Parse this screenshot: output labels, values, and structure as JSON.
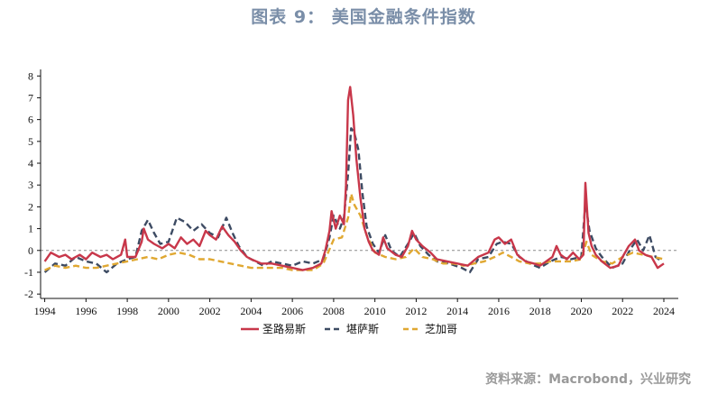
{
  "title": "图表 9：  美国金融条件指数",
  "source": "资料来源：Macrobond，兴业研究",
  "chart_data": {
    "type": "line",
    "xlim": [
      1993.8,
      2024.7
    ],
    "ylim": [
      -2.2,
      8.3
    ],
    "x_ticks": [
      1994,
      1996,
      1998,
      2000,
      2002,
      2004,
      2006,
      2008,
      2010,
      2012,
      2014,
      2016,
      2018,
      2020,
      2022,
      2024
    ],
    "y_ticks": [
      -2,
      -1,
      0,
      1,
      2,
      3,
      4,
      5,
      6,
      7,
      8
    ],
    "zero_line": true,
    "legend_position": "bottom-center",
    "series": [
      {
        "name": "圣路易斯",
        "color": "#c8374a",
        "style": "solid",
        "points": [
          [
            1994.0,
            -0.5
          ],
          [
            1994.3,
            -0.1
          ],
          [
            1994.7,
            -0.3
          ],
          [
            1995.0,
            -0.2
          ],
          [
            1995.3,
            -0.4
          ],
          [
            1995.7,
            -0.2
          ],
          [
            1996.0,
            -0.4
          ],
          [
            1996.3,
            -0.1
          ],
          [
            1996.7,
            -0.3
          ],
          [
            1997.0,
            -0.2
          ],
          [
            1997.3,
            -0.4
          ],
          [
            1997.7,
            -0.2
          ],
          [
            1997.9,
            0.5
          ],
          [
            1998.0,
            -0.3
          ],
          [
            1998.4,
            -0.3
          ],
          [
            1998.7,
            0.4
          ],
          [
            1998.8,
            1.0
          ],
          [
            1999.0,
            0.5
          ],
          [
            1999.3,
            0.3
          ],
          [
            1999.7,
            0.1
          ],
          [
            2000.0,
            0.3
          ],
          [
            2000.3,
            0.1
          ],
          [
            2000.6,
            0.6
          ],
          [
            2000.9,
            0.3
          ],
          [
            2001.2,
            0.5
          ],
          [
            2001.5,
            0.2
          ],
          [
            2001.8,
            0.9
          ],
          [
            2002.0,
            0.7
          ],
          [
            2002.3,
            0.5
          ],
          [
            2002.6,
            1.1
          ],
          [
            2002.9,
            0.7
          ],
          [
            2003.2,
            0.4
          ],
          [
            2003.5,
            0.0
          ],
          [
            2003.8,
            -0.3
          ],
          [
            2004.0,
            -0.4
          ],
          [
            2004.5,
            -0.6
          ],
          [
            2005.0,
            -0.6
          ],
          [
            2005.5,
            -0.7
          ],
          [
            2006.0,
            -0.8
          ],
          [
            2006.5,
            -0.9
          ],
          [
            2007.0,
            -0.8
          ],
          [
            2007.4,
            -0.6
          ],
          [
            2007.6,
            0.0
          ],
          [
            2007.8,
            0.9
          ],
          [
            2007.9,
            1.8
          ],
          [
            2008.1,
            1.0
          ],
          [
            2008.3,
            1.6
          ],
          [
            2008.5,
            1.2
          ],
          [
            2008.6,
            3.0
          ],
          [
            2008.7,
            6.9
          ],
          [
            2008.8,
            7.5
          ],
          [
            2008.95,
            6.2
          ],
          [
            2009.1,
            4.2
          ],
          [
            2009.3,
            2.4
          ],
          [
            2009.5,
            1.0
          ],
          [
            2009.7,
            0.4
          ],
          [
            2009.9,
            0.0
          ],
          [
            2010.2,
            -0.2
          ],
          [
            2010.4,
            0.6
          ],
          [
            2010.6,
            0.1
          ],
          [
            2011.0,
            -0.2
          ],
          [
            2011.3,
            -0.3
          ],
          [
            2011.6,
            0.2
          ],
          [
            2011.8,
            0.9
          ],
          [
            2012.0,
            0.5
          ],
          [
            2012.3,
            0.2
          ],
          [
            2012.7,
            -0.1
          ],
          [
            2013.0,
            -0.4
          ],
          [
            2013.5,
            -0.5
          ],
          [
            2014.0,
            -0.6
          ],
          [
            2014.5,
            -0.7
          ],
          [
            2015.0,
            -0.3
          ],
          [
            2015.5,
            -0.1
          ],
          [
            2015.8,
            0.5
          ],
          [
            2016.0,
            0.6
          ],
          [
            2016.3,
            0.3
          ],
          [
            2016.6,
            0.5
          ],
          [
            2016.9,
            -0.2
          ],
          [
            2017.3,
            -0.5
          ],
          [
            2017.7,
            -0.6
          ],
          [
            2018.0,
            -0.7
          ],
          [
            2018.3,
            -0.5
          ],
          [
            2018.6,
            -0.3
          ],
          [
            2018.8,
            0.2
          ],
          [
            2019.0,
            -0.2
          ],
          [
            2019.3,
            -0.4
          ],
          [
            2019.6,
            -0.1
          ],
          [
            2019.9,
            -0.4
          ],
          [
            2020.1,
            -0.2
          ],
          [
            2020.2,
            3.1
          ],
          [
            2020.35,
            0.8
          ],
          [
            2020.5,
            0.2
          ],
          [
            2020.7,
            -0.2
          ],
          [
            2021.0,
            -0.5
          ],
          [
            2021.4,
            -0.8
          ],
          [
            2021.8,
            -0.7
          ],
          [
            2022.0,
            -0.3
          ],
          [
            2022.3,
            0.2
          ],
          [
            2022.6,
            0.5
          ],
          [
            2022.8,
            0.0
          ],
          [
            2023.1,
            -0.2
          ],
          [
            2023.4,
            -0.3
          ],
          [
            2023.7,
            -0.8
          ],
          [
            2024.0,
            -0.6
          ]
        ]
      },
      {
        "name": "堪萨斯",
        "color": "#3d4b63",
        "style": "dash",
        "points": [
          [
            1994.0,
            -1.0
          ],
          [
            1994.5,
            -0.6
          ],
          [
            1995.0,
            -0.7
          ],
          [
            1995.5,
            -0.3
          ],
          [
            1996.0,
            -0.5
          ],
          [
            1996.5,
            -0.6
          ],
          [
            1997.0,
            -1.0
          ],
          [
            1997.5,
            -0.6
          ],
          [
            1998.0,
            -0.4
          ],
          [
            1998.4,
            -0.3
          ],
          [
            1998.7,
            0.9
          ],
          [
            1999.0,
            1.4
          ],
          [
            1999.3,
            0.8
          ],
          [
            1999.6,
            0.3
          ],
          [
            2000.0,
            0.4
          ],
          [
            2000.4,
            1.5
          ],
          [
            2000.8,
            1.3
          ],
          [
            2001.2,
            0.9
          ],
          [
            2001.6,
            1.2
          ],
          [
            2002.0,
            0.8
          ],
          [
            2002.4,
            0.6
          ],
          [
            2002.8,
            1.5
          ],
          [
            2003.1,
            0.8
          ],
          [
            2003.4,
            0.2
          ],
          [
            2003.8,
            -0.3
          ],
          [
            2004.2,
            -0.5
          ],
          [
            2004.6,
            -0.7
          ],
          [
            2005.0,
            -0.5
          ],
          [
            2005.5,
            -0.6
          ],
          [
            2006.0,
            -0.7
          ],
          [
            2006.5,
            -0.5
          ],
          [
            2007.0,
            -0.6
          ],
          [
            2007.5,
            -0.4
          ],
          [
            2007.8,
            0.6
          ],
          [
            2008.0,
            1.6
          ],
          [
            2008.3,
            1.0
          ],
          [
            2008.5,
            1.5
          ],
          [
            2008.7,
            3.5
          ],
          [
            2008.85,
            5.6
          ],
          [
            2009.0,
            5.4
          ],
          [
            2009.2,
            4.6
          ],
          [
            2009.4,
            2.6
          ],
          [
            2009.6,
            1.1
          ],
          [
            2009.9,
            0.3
          ],
          [
            2010.2,
            -0.1
          ],
          [
            2010.5,
            0.7
          ],
          [
            2010.8,
            0.0
          ],
          [
            2011.2,
            -0.3
          ],
          [
            2011.6,
            0.3
          ],
          [
            2011.9,
            0.8
          ],
          [
            2012.2,
            0.2
          ],
          [
            2012.6,
            -0.2
          ],
          [
            2013.0,
            -0.5
          ],
          [
            2013.6,
            -0.6
          ],
          [
            2014.2,
            -0.8
          ],
          [
            2014.6,
            -1.0
          ],
          [
            2015.0,
            -0.4
          ],
          [
            2015.5,
            -0.3
          ],
          [
            2015.9,
            0.3
          ],
          [
            2016.2,
            0.4
          ],
          [
            2016.6,
            0.3
          ],
          [
            2017.0,
            -0.3
          ],
          [
            2017.5,
            -0.6
          ],
          [
            2018.0,
            -0.8
          ],
          [
            2018.5,
            -0.5
          ],
          [
            2019.0,
            -0.3
          ],
          [
            2019.5,
            -0.4
          ],
          [
            2020.0,
            -0.3
          ],
          [
            2020.2,
            2.2
          ],
          [
            2020.4,
            0.9
          ],
          [
            2020.7,
            0.1
          ],
          [
            2021.0,
            -0.3
          ],
          [
            2021.5,
            -0.8
          ],
          [
            2022.0,
            -0.6
          ],
          [
            2022.4,
            0.1
          ],
          [
            2022.7,
            0.5
          ],
          [
            2023.0,
            0.0
          ],
          [
            2023.3,
            0.7
          ],
          [
            2023.6,
            -0.3
          ],
          [
            2023.9,
            -0.5
          ]
        ]
      },
      {
        "name": "芝加哥",
        "color": "#e0a832",
        "style": "dash",
        "points": [
          [
            1994.0,
            -0.9
          ],
          [
            1994.5,
            -0.7
          ],
          [
            1995.0,
            -0.8
          ],
          [
            1995.5,
            -0.7
          ],
          [
            1996.0,
            -0.8
          ],
          [
            1996.5,
            -0.8
          ],
          [
            1997.0,
            -0.7
          ],
          [
            1997.5,
            -0.6
          ],
          [
            1998.0,
            -0.5
          ],
          [
            1998.5,
            -0.4
          ],
          [
            1999.0,
            -0.3
          ],
          [
            1999.5,
            -0.4
          ],
          [
            2000.0,
            -0.2
          ],
          [
            2000.5,
            -0.1
          ],
          [
            2001.0,
            -0.2
          ],
          [
            2001.5,
            -0.4
          ],
          [
            2002.0,
            -0.4
          ],
          [
            2002.5,
            -0.5
          ],
          [
            2003.0,
            -0.6
          ],
          [
            2003.5,
            -0.7
          ],
          [
            2004.0,
            -0.8
          ],
          [
            2004.5,
            -0.8
          ],
          [
            2005.0,
            -0.8
          ],
          [
            2005.5,
            -0.8
          ],
          [
            2006.0,
            -0.9
          ],
          [
            2006.5,
            -0.9
          ],
          [
            2007.0,
            -0.9
          ],
          [
            2007.5,
            -0.6
          ],
          [
            2008.0,
            0.5
          ],
          [
            2008.4,
            0.6
          ],
          [
            2008.7,
            1.5
          ],
          [
            2008.85,
            2.6
          ],
          [
            2009.0,
            2.1
          ],
          [
            2009.3,
            1.6
          ],
          [
            2009.6,
            0.7
          ],
          [
            2010.0,
            -0.1
          ],
          [
            2010.5,
            -0.3
          ],
          [
            2011.0,
            -0.4
          ],
          [
            2011.5,
            -0.3
          ],
          [
            2011.9,
            0.1
          ],
          [
            2012.3,
            -0.3
          ],
          [
            2012.8,
            -0.4
          ],
          [
            2013.3,
            -0.6
          ],
          [
            2013.8,
            -0.6
          ],
          [
            2014.3,
            -0.7
          ],
          [
            2014.8,
            -0.6
          ],
          [
            2015.3,
            -0.5
          ],
          [
            2015.8,
            -0.3
          ],
          [
            2016.2,
            -0.1
          ],
          [
            2016.6,
            -0.3
          ],
          [
            2017.0,
            -0.5
          ],
          [
            2017.5,
            -0.6
          ],
          [
            2018.0,
            -0.6
          ],
          [
            2018.5,
            -0.5
          ],
          [
            2019.0,
            -0.5
          ],
          [
            2019.5,
            -0.5
          ],
          [
            2020.0,
            -0.4
          ],
          [
            2020.25,
            0.4
          ],
          [
            2020.5,
            -0.2
          ],
          [
            2021.0,
            -0.5
          ],
          [
            2021.5,
            -0.6
          ],
          [
            2022.0,
            -0.3
          ],
          [
            2022.5,
            -0.1
          ],
          [
            2023.0,
            -0.2
          ],
          [
            2023.5,
            -0.3
          ],
          [
            2024.0,
            -0.4
          ]
        ]
      }
    ]
  }
}
